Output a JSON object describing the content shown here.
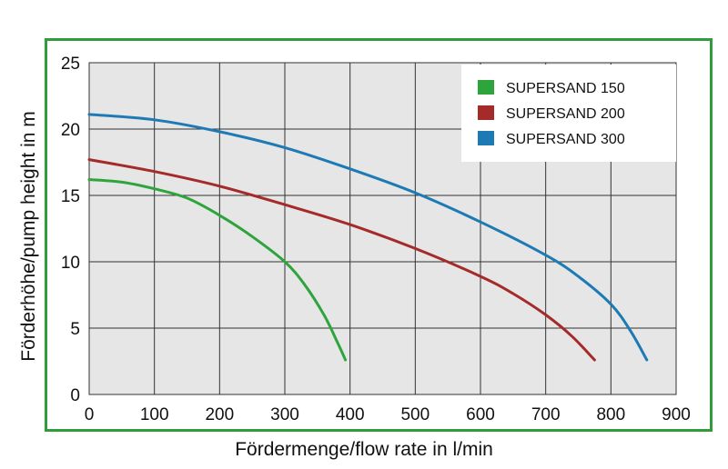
{
  "chart_data": {
    "type": "line",
    "xlabel": "Fördermenge/flow rate in l/min",
    "ylabel": "Förderhöhe/pump height in m",
    "xlim": [
      0,
      900
    ],
    "ylim": [
      0,
      25
    ],
    "xticks": [
      "0",
      "100",
      "200",
      "300",
      "400",
      "500",
      "600",
      "700",
      "800",
      "900"
    ],
    "yticks": [
      "0",
      "5",
      "10",
      "15",
      "20",
      "25"
    ],
    "grid": true,
    "legend_position": "top-right",
    "series": [
      {
        "name": "SUPERSAND 150",
        "color": "#2ea53c",
        "x": [
          0,
          50,
          100,
          150,
          200,
          250,
          300,
          330,
          360,
          380,
          393
        ],
        "y": [
          16.2,
          16.0,
          15.5,
          14.8,
          13.5,
          11.9,
          10.0,
          8.3,
          6.0,
          4.0,
          2.6
        ]
      },
      {
        "name": "SUPERSAND 200",
        "color": "#a52a2a",
        "x": [
          0,
          100,
          200,
          300,
          400,
          500,
          600,
          650,
          700,
          740,
          775
        ],
        "y": [
          17.7,
          16.8,
          15.7,
          14.3,
          12.8,
          11.0,
          8.9,
          7.6,
          6.0,
          4.4,
          2.6
        ]
      },
      {
        "name": "SUPERSAND 300",
        "color": "#1d7ab5",
        "x": [
          0,
          100,
          200,
          300,
          400,
          500,
          600,
          700,
          750,
          800,
          830,
          855
        ],
        "y": [
          21.1,
          20.7,
          19.8,
          18.6,
          17.0,
          15.2,
          13.0,
          10.5,
          8.9,
          6.8,
          4.8,
          2.6
        ]
      }
    ]
  }
}
